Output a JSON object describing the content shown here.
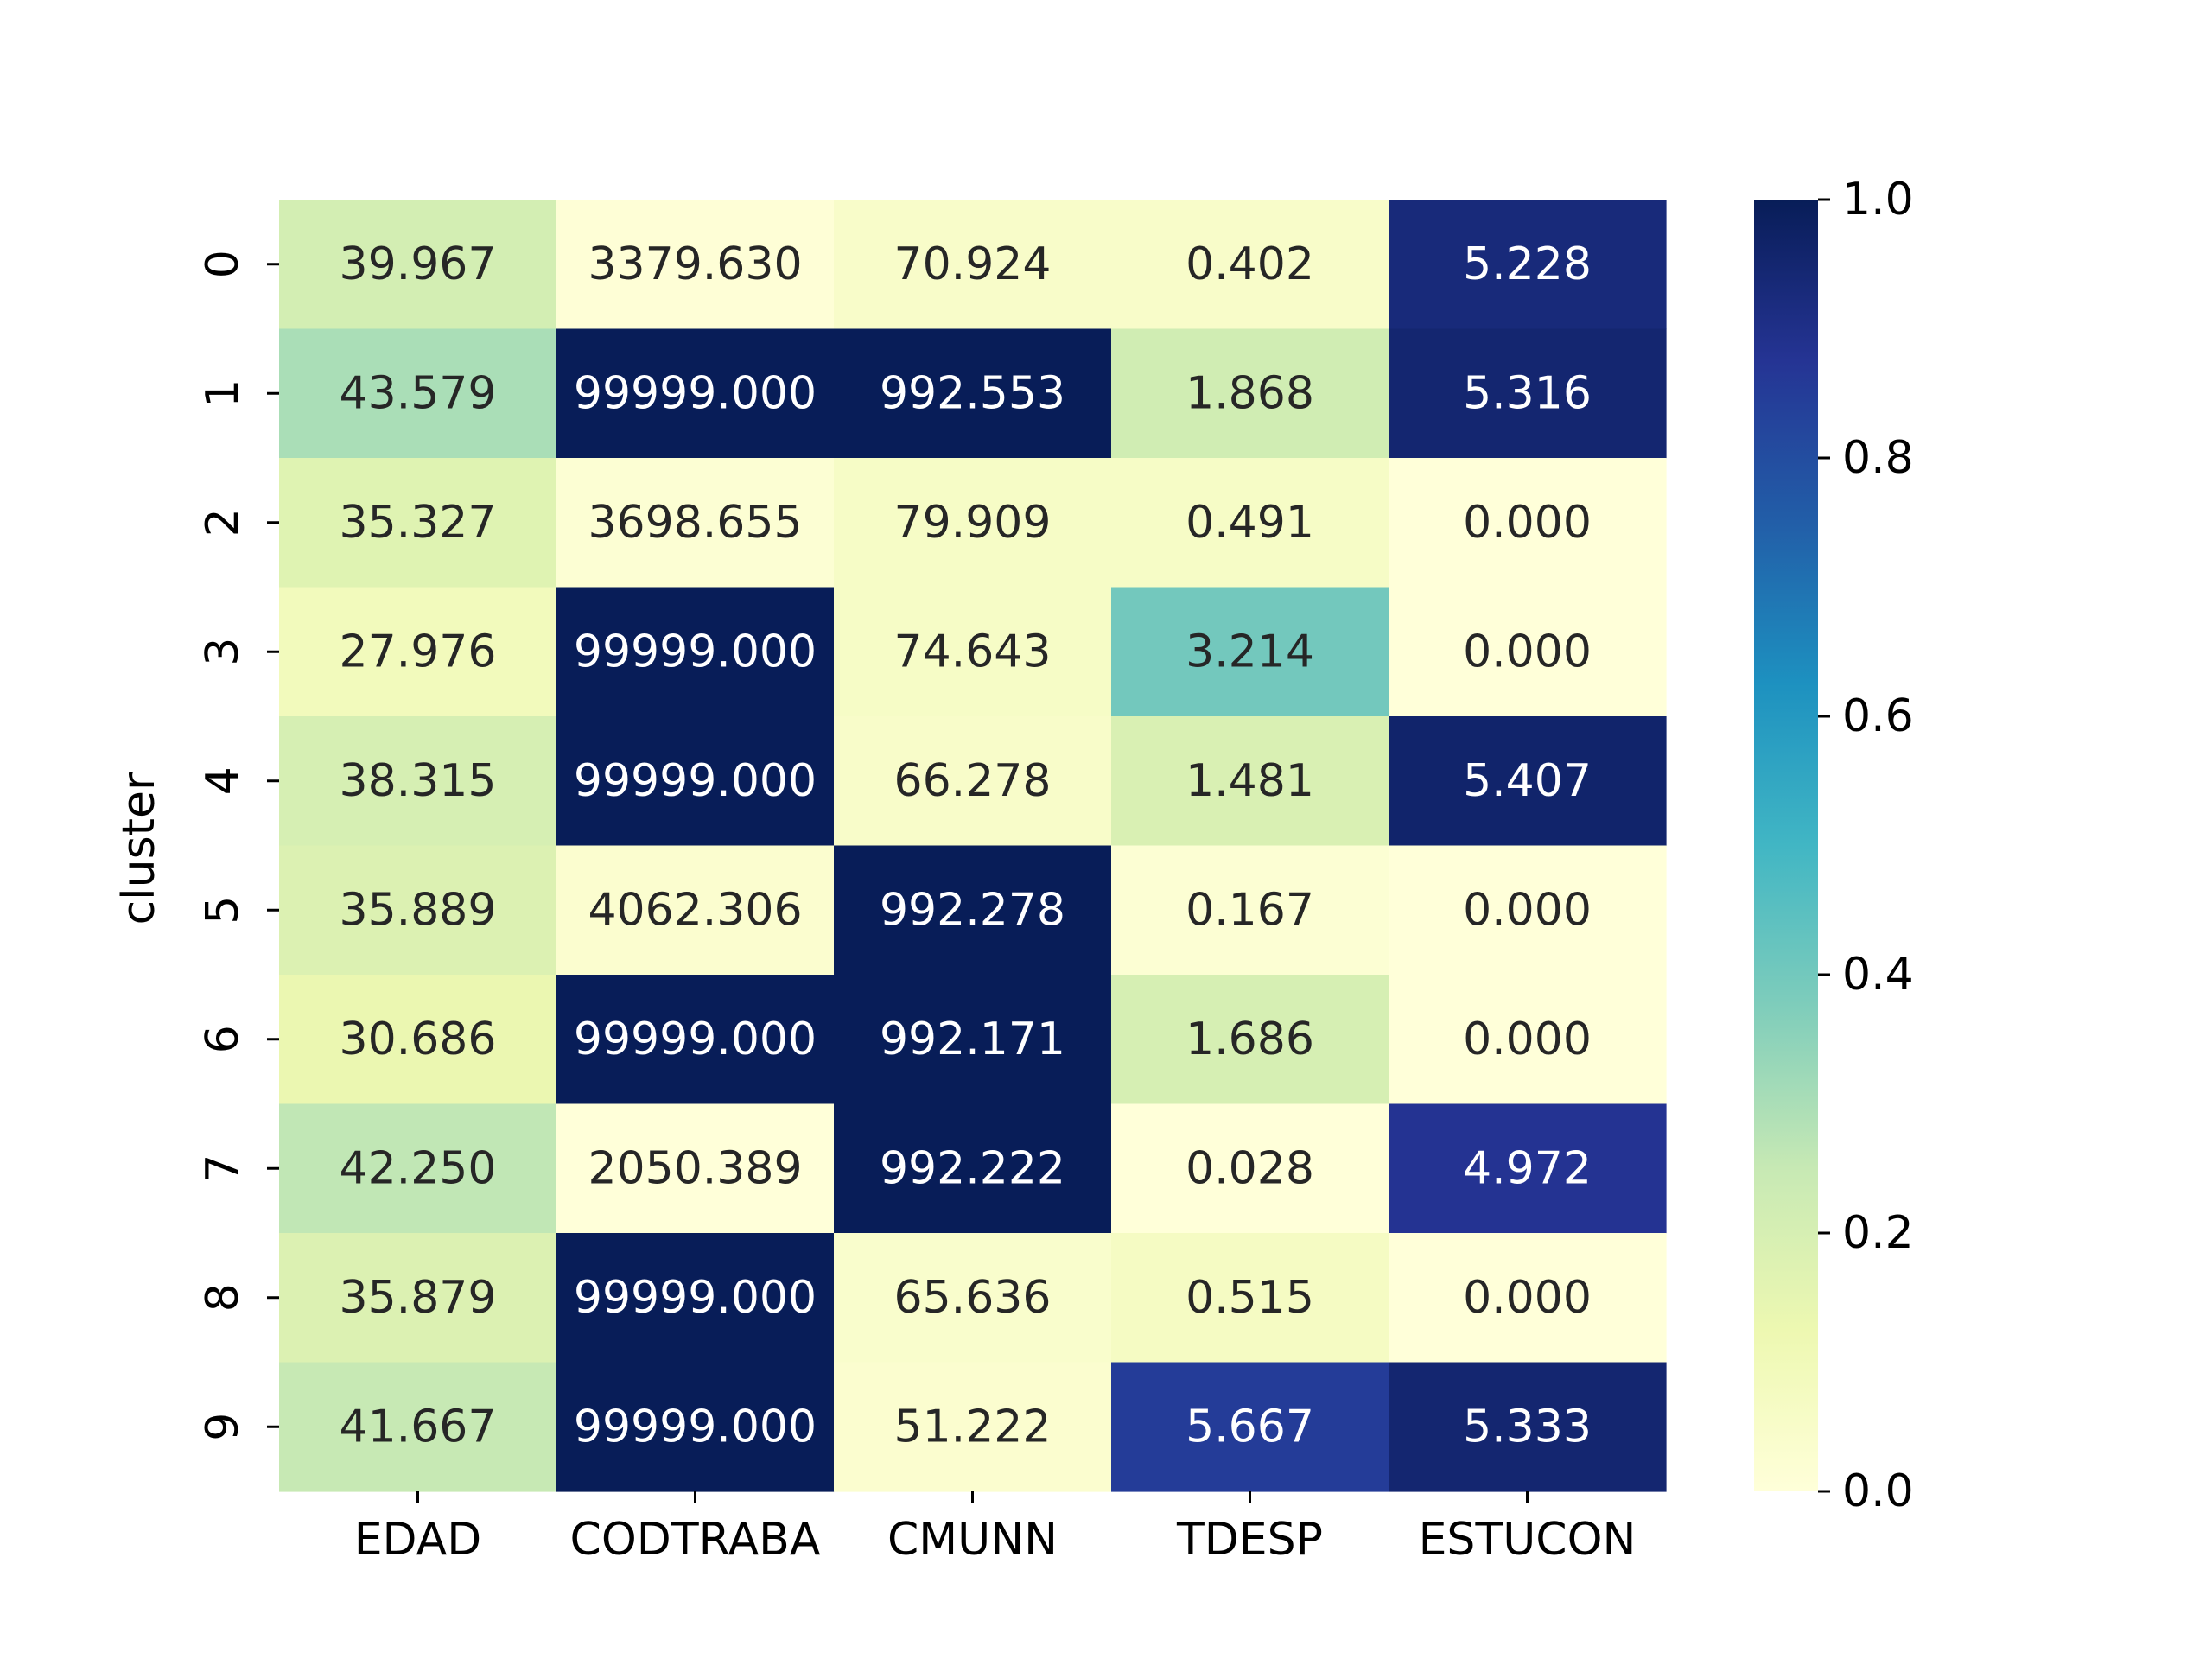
{
  "chart_data": {
    "type": "heatmap",
    "columns": [
      "EDAD",
      "CODTRABA",
      "CMUNN",
      "TDESP",
      "ESTUCON"
    ],
    "rows": [
      "0",
      "1",
      "2",
      "3",
      "4",
      "5",
      "6",
      "7",
      "8",
      "9"
    ],
    "ylabel": "cluster",
    "xlabel": "",
    "title": "",
    "cell_labels": [
      [
        "39.967",
        "3379.630",
        "70.924",
        "0.402",
        "5.228"
      ],
      [
        "43.579",
        "99999.000",
        "992.553",
        "1.868",
        "5.316"
      ],
      [
        "35.327",
        "3698.655",
        "79.909",
        "0.491",
        "0.000"
      ],
      [
        "27.976",
        "99999.000",
        "74.643",
        "3.214",
        "0.000"
      ],
      [
        "38.315",
        "99999.000",
        "66.278",
        "1.481",
        "5.407"
      ],
      [
        "35.889",
        "4062.306",
        "992.278",
        "0.167",
        "0.000"
      ],
      [
        "30.686",
        "99999.000",
        "992.171",
        "1.686",
        "0.000"
      ],
      [
        "42.250",
        "2050.389",
        "992.222",
        "0.028",
        "4.972"
      ],
      [
        "35.879",
        "99999.000",
        "65.636",
        "0.515",
        "0.000"
      ],
      [
        "41.667",
        "99999.000",
        "51.222",
        "5.667",
        "5.333"
      ]
    ],
    "normalized_color_values": [
      [
        0.21,
        0.01,
        0.05,
        0.05,
        0.93
      ],
      [
        0.3,
        1.0,
        1.0,
        0.22,
        0.95
      ],
      [
        0.17,
        0.02,
        0.06,
        0.06,
        0.0
      ],
      [
        0.09,
        1.0,
        0.06,
        0.4,
        0.0
      ],
      [
        0.2,
        1.0,
        0.05,
        0.19,
        0.96
      ],
      [
        0.18,
        0.03,
        1.0,
        0.02,
        0.0
      ],
      [
        0.13,
        1.0,
        1.0,
        0.2,
        0.0
      ],
      [
        0.26,
        0.0,
        1.0,
        0.0,
        0.88
      ],
      [
        0.18,
        1.0,
        0.04,
        0.07,
        0.0
      ],
      [
        0.25,
        1.0,
        0.03,
        0.85,
        0.95
      ]
    ],
    "colorbar": {
      "colormap": "YlGnBu",
      "range": [
        0.0,
        1.0
      ],
      "ticks": [
        "0.0",
        "0.2",
        "0.4",
        "0.6",
        "0.8",
        "1.0"
      ]
    },
    "colors": {
      "stops": [
        "#ffffd9",
        "#edf8b1",
        "#c7e9b4",
        "#7fcdbb",
        "#41b6c4",
        "#1d91c0",
        "#225ea8",
        "#253494",
        "#081d58"
      ],
      "dark_text": "#262626",
      "light_text": "#ffffff"
    }
  }
}
